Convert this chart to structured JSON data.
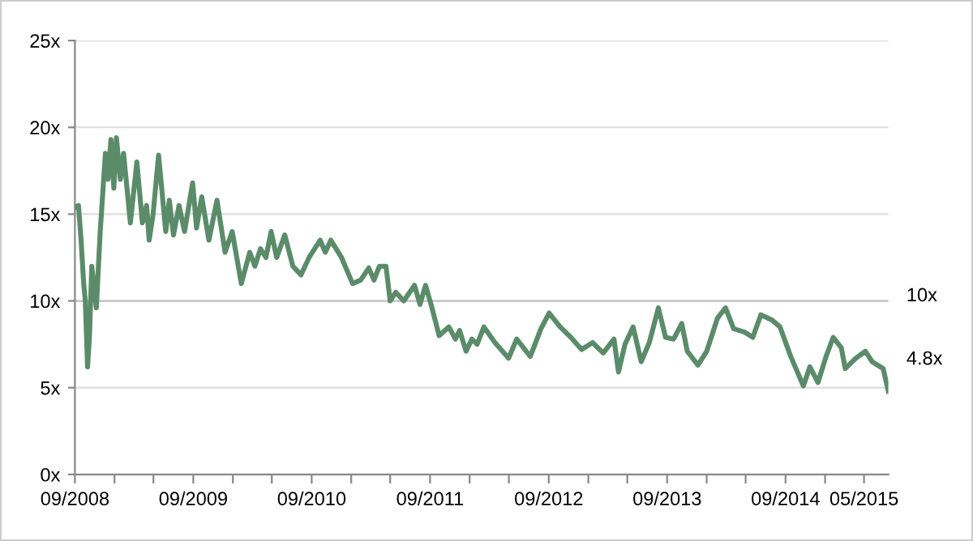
{
  "chart_data": {
    "type": "line",
    "x": [
      "2008-09-01",
      "2008-09-12",
      "2008-09-20",
      "2008-09-28",
      "2008-10-03",
      "2008-10-10",
      "2008-10-16",
      "2008-10-23",
      "2008-11-06",
      "2008-11-18",
      "2008-12-04",
      "2008-12-12",
      "2008-12-21",
      "2008-12-30",
      "2009-01-07",
      "2009-01-19",
      "2009-01-29",
      "2009-02-19",
      "2009-03-11",
      "2009-03-28",
      "2009-04-10",
      "2009-04-18",
      "2009-04-30",
      "2009-05-17",
      "2009-06-08",
      "2009-06-19",
      "2009-07-02",
      "2009-07-19",
      "2009-08-05",
      "2009-08-30",
      "2009-09-11",
      "2009-09-27",
      "2009-10-19",
      "2009-11-13",
      "2009-12-08",
      "2009-12-30",
      "2010-01-27",
      "2010-02-22",
      "2010-03-10",
      "2010-03-27",
      "2010-04-13",
      "2010-04-29",
      "2010-05-16",
      "2010-06-10",
      "2010-07-05",
      "2010-07-30",
      "2010-08-24",
      "2010-09-27",
      "2010-10-13",
      "2010-10-30",
      "2010-12-02",
      "2011-01-05",
      "2011-01-30",
      "2011-02-24",
      "2011-03-12",
      "2011-03-29",
      "2011-04-18",
      "2011-05-01",
      "2011-05-18",
      "2011-06-12",
      "2011-07-15",
      "2011-08-01",
      "2011-08-18",
      "2011-09-04",
      "2011-09-29",
      "2011-10-29",
      "2011-11-18",
      "2011-12-01",
      "2011-12-21",
      "2012-01-08",
      "2012-01-24",
      "2012-02-14",
      "2012-03-19",
      "2012-04-30",
      "2012-05-25",
      "2012-07-06",
      "2012-08-08",
      "2012-09-02",
      "2012-10-06",
      "2012-11-08",
      "2012-12-11",
      "2013-01-14",
      "2013-02-16",
      "2013-03-21",
      "2013-04-04",
      "2013-04-24",
      "2013-05-19",
      "2013-06-13",
      "2013-07-08",
      "2013-08-05",
      "2013-08-27",
      "2013-09-21",
      "2013-10-16",
      "2013-11-02",
      "2013-12-05",
      "2014-01-01",
      "2014-02-03",
      "2014-02-28",
      "2014-03-25",
      "2014-04-28",
      "2014-05-23",
      "2014-06-17",
      "2014-07-21",
      "2014-08-15",
      "2014-09-17",
      "2014-10-26",
      "2014-11-15",
      "2014-12-10",
      "2015-01-04",
      "2015-01-26",
      "2015-02-20",
      "2015-03-04",
      "2015-04-06",
      "2015-05-05",
      "2015-05-26",
      "2015-06-29",
      "2015-07-15"
    ],
    "series": [
      {
        "color": "#5b8c6a",
        "values": [
          15.4,
          15.5,
          13.5,
          11.0,
          10.0,
          6.2,
          8.0,
          12.0,
          9.6,
          14.0,
          18.5,
          17.0,
          19.3,
          16.5,
          19.4,
          17.0,
          18.5,
          14.5,
          18.0,
          14.5,
          15.5,
          13.5,
          15.0,
          18.4,
          14.0,
          15.8,
          13.8,
          15.5,
          14.0,
          16.8,
          14.2,
          16.0,
          13.5,
          15.8,
          12.8,
          14.0,
          11.0,
          12.8,
          12.0,
          13.0,
          12.5,
          14.0,
          12.5,
          13.8,
          12.0,
          11.5,
          12.5,
          13.5,
          12.8,
          13.5,
          12.5,
          11.0,
          11.2,
          11.9,
          11.2,
          12.0,
          12.0,
          10.0,
          10.5,
          10.0,
          10.9,
          9.8,
          10.9,
          9.8,
          8.0,
          8.5,
          7.8,
          8.3,
          7.1,
          7.8,
          7.5,
          8.5,
          7.6,
          6.7,
          7.8,
          6.8,
          8.4,
          9.3,
          8.5,
          7.9,
          7.2,
          7.6,
          7.0,
          7.8,
          5.9,
          7.5,
          8.5,
          6.5,
          7.6,
          9.6,
          7.9,
          7.8,
          8.7,
          7.1,
          6.3,
          7.1,
          9.0,
          9.6,
          8.4,
          8.2,
          7.9,
          9.2,
          8.9,
          8.5,
          6.8,
          5.1,
          6.2,
          5.3,
          6.8,
          7.9,
          7.3,
          6.1,
          6.7,
          7.1,
          6.5,
          6.1,
          4.8
        ]
      }
    ],
    "xlim": [
      "2008-09-01",
      "2015-07-15"
    ],
    "xticks": [
      {
        "value": "2008-09-01",
        "label": "09/2008"
      },
      {
        "value": "2009-01-01",
        "label": null
      },
      {
        "value": "2009-05-01",
        "label": null
      },
      {
        "value": "2009-09-01",
        "label": "09/2009"
      },
      {
        "value": "2010-01-01",
        "label": null
      },
      {
        "value": "2010-05-01",
        "label": null
      },
      {
        "value": "2010-09-01",
        "label": "09/2010"
      },
      {
        "value": "2011-01-01",
        "label": null
      },
      {
        "value": "2011-05-01",
        "label": null
      },
      {
        "value": "2011-09-01",
        "label": "09/2011"
      },
      {
        "value": "2012-01-01",
        "label": null
      },
      {
        "value": "2012-05-01",
        "label": null
      },
      {
        "value": "2012-09-01",
        "label": "09/2012"
      },
      {
        "value": "2013-01-01",
        "label": null
      },
      {
        "value": "2013-05-01",
        "label": null
      },
      {
        "value": "2013-09-01",
        "label": "09/2013"
      },
      {
        "value": "2014-01-01",
        "label": null
      },
      {
        "value": "2014-05-01",
        "label": null
      },
      {
        "value": "2014-09-01",
        "label": "09/2014"
      },
      {
        "value": "2015-01-01",
        "label": null
      },
      {
        "value": "2015-05-01",
        "label": "05/2015"
      }
    ],
    "ylim": [
      0,
      25
    ],
    "yticks": [
      {
        "value": 0,
        "label": "0x"
      },
      {
        "value": 5,
        "label": "5x"
      },
      {
        "value": 10,
        "label": "10x"
      },
      {
        "value": 15,
        "label": "15x"
      },
      {
        "value": 20,
        "label": "20x"
      },
      {
        "value": 25,
        "label": "25x"
      }
    ],
    "grid": "y",
    "line_style": "solid",
    "marker": "none",
    "ref_lines": [
      {
        "axis": "y",
        "value": 10,
        "label": "10x",
        "color": "#c8c8c8"
      }
    ],
    "annotations": [
      {
        "text": "4.8x",
        "x": "2015-07-15",
        "y": 4.8
      }
    ]
  }
}
